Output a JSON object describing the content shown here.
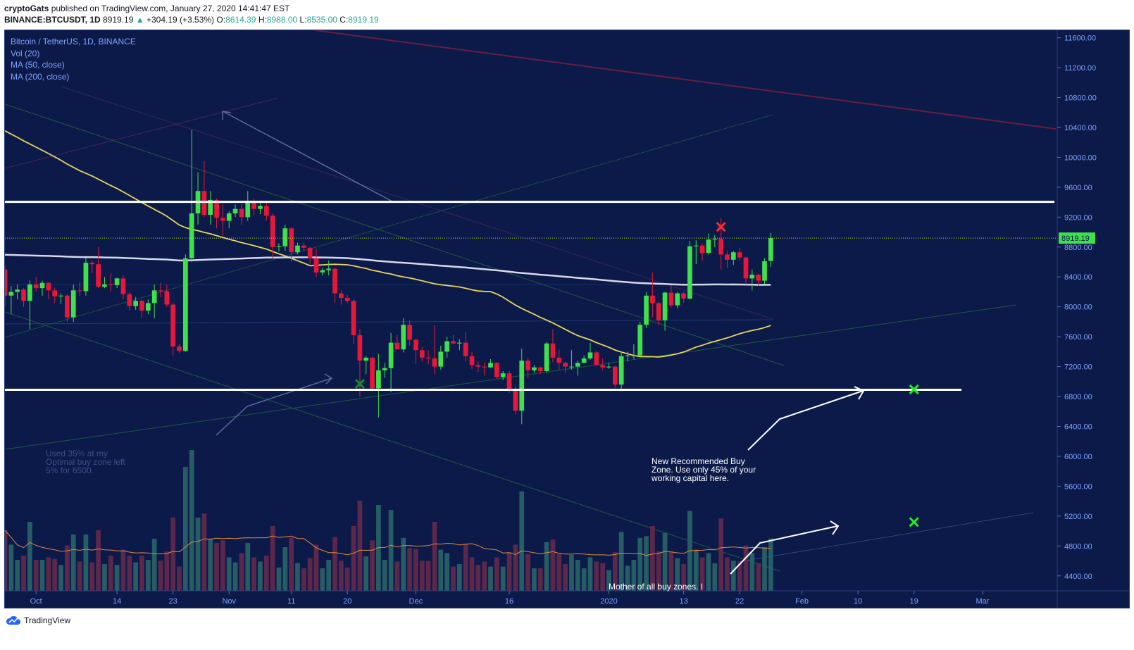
{
  "header": {
    "author": "cryptoGats",
    "published_text": "published on TradingView.com, January 27, 2020 14:41:47 EST",
    "symbol": "BINANCE:BTCUSDT, 1D",
    "last": "8919.19",
    "change_arrow": "▲",
    "change": "+304.19 (+3.53%)",
    "o_label": "O:",
    "o": "8614.39",
    "h_label": "H:",
    "h": "8988.00",
    "l_label": "L:",
    "l": "8535.00",
    "c_label": "C:",
    "c": "8919.19"
  },
  "legend": {
    "title": "Bitcoin / TetherUS, 1D, BINANCE",
    "items": [
      "Vol (20)",
      "MA (50, close)",
      "MA (200, close)"
    ]
  },
  "annotations": {
    "buy_zone_note": [
      "New Recommended Buy",
      "Zone. Use only 45% of your",
      "working capital here."
    ],
    "used_note": [
      "Used 35% at my",
      "Optimal buy zone left",
      "5% for 6500."
    ],
    "mother_note": "Mother of all buy zones. I"
  },
  "footer": {
    "brand": "TradingView"
  },
  "colors": {
    "bg": "#0c1a4a",
    "up": "#3fe04a",
    "down": "#e8173a",
    "ma50": "#e8d55a",
    "ma200": "#d8d8e8",
    "level": "#ffffff",
    "price_tag": "#3fe04a"
  },
  "chart_data": {
    "type": "candlestick",
    "y_axis": {
      "min": 4200,
      "max": 11700,
      "ticks": [
        "11600.00",
        "11200.00",
        "10800.00",
        "10400.00",
        "10000.00",
        "9600.00",
        "9200.00",
        "8800.00",
        "8400.00",
        "8000.00",
        "7600.00",
        "7200.00",
        "6800.00",
        "6400.00",
        "6000.00",
        "5600.00",
        "5200.00",
        "4800.00",
        "4400.00"
      ],
      "tick_values": [
        11600,
        11200,
        10800,
        10400,
        10000,
        9600,
        9200,
        8800,
        8400,
        8000,
        7600,
        7200,
        6800,
        6400,
        6000,
        5600,
        5200,
        4800,
        4400
      ]
    },
    "x_axis": {
      "labels": [
        "Oct",
        "14",
        "23",
        "Nov",
        "11",
        "20",
        "Dec",
        "16",
        "2020",
        "13",
        "22",
        "Feb",
        "10",
        "19",
        "Mar"
      ],
      "label_dates": [
        "2019-10-01",
        "2019-10-14",
        "2019-10-23",
        "2019-11-01",
        "2019-11-11",
        "2019-11-20",
        "2019-12-01",
        "2019-12-16",
        "2020-01-01",
        "2020-01-13",
        "2020-01-22",
        "2020-02-01",
        "2020-02-10",
        "2020-02-19",
        "2020-03-01"
      ],
      "start": "2019-09-26",
      "end": "2020-03-13"
    },
    "current_price": "8919.19",
    "horizontal_levels": [
      9405,
      6890
    ],
    "candles": [
      [
        "2019-09-26",
        8500,
        8550,
        8000,
        8150
      ],
      [
        "2019-09-27",
        8150,
        8280,
        7900,
        8200
      ],
      [
        "2019-09-28",
        8200,
        8300,
        8100,
        8230
      ],
      [
        "2019-09-29",
        8230,
        8250,
        8000,
        8080
      ],
      [
        "2019-09-30",
        8080,
        8350,
        7700,
        8300
      ],
      [
        "2019-10-01",
        8300,
        8400,
        8200,
        8250
      ],
      [
        "2019-10-02",
        8250,
        8350,
        8150,
        8320
      ],
      [
        "2019-10-03",
        8320,
        8330,
        8100,
        8220
      ],
      [
        "2019-10-04",
        8220,
        8260,
        8050,
        8140
      ],
      [
        "2019-10-05",
        8140,
        8180,
        8040,
        8150
      ],
      [
        "2019-10-06",
        8150,
        8170,
        7800,
        7860
      ],
      [
        "2019-10-07",
        7860,
        8300,
        7800,
        8220
      ],
      [
        "2019-10-08",
        8220,
        8330,
        8150,
        8210
      ],
      [
        "2019-10-09",
        8210,
        8650,
        8150,
        8590
      ],
      [
        "2019-10-10",
        8590,
        8620,
        8450,
        8570
      ],
      [
        "2019-10-11",
        8570,
        8800,
        8250,
        8270
      ],
      [
        "2019-10-12",
        8270,
        8400,
        8250,
        8300
      ],
      [
        "2019-10-13",
        8300,
        8450,
        8200,
        8290
      ],
      [
        "2019-10-14",
        8290,
        8390,
        8250,
        8380
      ],
      [
        "2019-10-15",
        8380,
        8420,
        8100,
        8170
      ],
      [
        "2019-10-16",
        8170,
        8200,
        7950,
        8010
      ],
      [
        "2019-10-17",
        8010,
        8130,
        7960,
        8080
      ],
      [
        "2019-10-18",
        8080,
        8100,
        7850,
        7950
      ],
      [
        "2019-10-19",
        7950,
        8100,
        7900,
        8050
      ],
      [
        "2019-10-20",
        8050,
        8300,
        7850,
        8220
      ],
      [
        "2019-10-21",
        8220,
        8320,
        8130,
        8210
      ],
      [
        "2019-10-22",
        8210,
        8300,
        8000,
        8030
      ],
      [
        "2019-10-23",
        8030,
        8050,
        7350,
        7470
      ],
      [
        "2019-10-24",
        7470,
        7500,
        7380,
        7410
      ],
      [
        "2019-10-25",
        7410,
        8700,
        7400,
        8650
      ],
      [
        "2019-10-26",
        8650,
        10370,
        8600,
        9250
      ],
      [
        "2019-10-27",
        9250,
        9800,
        9100,
        9550
      ],
      [
        "2019-10-28",
        9550,
        9950,
        9200,
        9230
      ],
      [
        "2019-10-29",
        9230,
        9550,
        9100,
        9430
      ],
      [
        "2019-10-30",
        9430,
        9450,
        9050,
        9190
      ],
      [
        "2019-10-31",
        9190,
        9380,
        8950,
        9150
      ],
      [
        "2019-11-01",
        9150,
        9280,
        9050,
        9250
      ],
      [
        "2019-11-02",
        9250,
        9370,
        9200,
        9310
      ],
      [
        "2019-11-03",
        9310,
        9380,
        9100,
        9200
      ],
      [
        "2019-11-04",
        9200,
        9550,
        9150,
        9420
      ],
      [
        "2019-11-05",
        9420,
        9450,
        9220,
        9310
      ],
      [
        "2019-11-06",
        9310,
        9420,
        9240,
        9350
      ],
      [
        "2019-11-07",
        9350,
        9400,
        9150,
        9220
      ],
      [
        "2019-11-08",
        9220,
        9250,
        8650,
        8800
      ],
      [
        "2019-11-09",
        8800,
        8850,
        8740,
        8810
      ],
      [
        "2019-11-10",
        8810,
        9100,
        8750,
        9050
      ],
      [
        "2019-11-11",
        9050,
        9060,
        8600,
        8730
      ],
      [
        "2019-11-12",
        8730,
        8860,
        8700,
        8820
      ],
      [
        "2019-11-13",
        8820,
        8850,
        8750,
        8790
      ],
      [
        "2019-11-14",
        8790,
        8800,
        8580,
        8650
      ],
      [
        "2019-11-15",
        8650,
        8780,
        8400,
        8460
      ],
      [
        "2019-11-16",
        8460,
        8520,
        8420,
        8490
      ],
      [
        "2019-11-17",
        8490,
        8620,
        8420,
        8510
      ],
      [
        "2019-11-18",
        8510,
        8520,
        8050,
        8180
      ],
      [
        "2019-11-19",
        8180,
        8220,
        8030,
        8120
      ],
      [
        "2019-11-20",
        8120,
        8160,
        8050,
        8080
      ],
      [
        "2019-11-21",
        8080,
        8100,
        7500,
        7620
      ],
      [
        "2019-11-22",
        7620,
        7700,
        6800,
        7280
      ],
      [
        "2019-11-23",
        7280,
        7340,
        7100,
        7320
      ],
      [
        "2019-11-24",
        7320,
        7330,
        6900,
        6910
      ],
      [
        "2019-11-25",
        6910,
        7370,
        6520,
        7150
      ],
      [
        "2019-11-26",
        7150,
        7250,
        7050,
        7180
      ],
      [
        "2019-11-27",
        7180,
        7650,
        6860,
        7520
      ],
      [
        "2019-11-28",
        7520,
        7620,
        7440,
        7430
      ],
      [
        "2019-11-29",
        7430,
        7850,
        7390,
        7760
      ],
      [
        "2019-11-30",
        7760,
        7820,
        7480,
        7560
      ],
      [
        "2019-12-01",
        7560,
        7570,
        7240,
        7420
      ],
      [
        "2019-12-02",
        7420,
        7460,
        7270,
        7320
      ],
      [
        "2019-12-03",
        7320,
        7420,
        7230,
        7310
      ],
      [
        "2019-12-04",
        7310,
        7750,
        7100,
        7200
      ],
      [
        "2019-12-05",
        7200,
        7480,
        7160,
        7400
      ],
      [
        "2019-12-06",
        7400,
        7600,
        7320,
        7540
      ],
      [
        "2019-12-07",
        7540,
        7620,
        7500,
        7510
      ],
      [
        "2019-12-08",
        7510,
        7570,
        7420,
        7520
      ],
      [
        "2019-12-09",
        7520,
        7660,
        7270,
        7340
      ],
      [
        "2019-12-10",
        7340,
        7400,
        7170,
        7220
      ],
      [
        "2019-12-11",
        7220,
        7270,
        7130,
        7200
      ],
      [
        "2019-12-12",
        7200,
        7260,
        7080,
        7190
      ],
      [
        "2019-12-13",
        7190,
        7300,
        7180,
        7250
      ],
      [
        "2019-12-14",
        7250,
        7260,
        7030,
        7060
      ],
      [
        "2019-12-15",
        7060,
        7140,
        7020,
        7110
      ],
      [
        "2019-12-16",
        7110,
        7140,
        6850,
        6880
      ],
      [
        "2019-12-17",
        6880,
        6940,
        6560,
        6610
      ],
      [
        "2019-12-18",
        6610,
        7440,
        6430,
        7280
      ],
      [
        "2019-12-19",
        7280,
        7320,
        7050,
        7150
      ],
      [
        "2019-12-20",
        7150,
        7220,
        7120,
        7190
      ],
      [
        "2019-12-21",
        7190,
        7200,
        7100,
        7140
      ],
      [
        "2019-12-22",
        7140,
        7530,
        7120,
        7510
      ],
      [
        "2019-12-23",
        7510,
        7700,
        7260,
        7320
      ],
      [
        "2019-12-24",
        7320,
        7430,
        7160,
        7250
      ],
      [
        "2019-12-25",
        7250,
        7270,
        7120,
        7200
      ],
      [
        "2019-12-26",
        7200,
        7420,
        7160,
        7200
      ],
      [
        "2019-12-27",
        7200,
        7280,
        7080,
        7250
      ],
      [
        "2019-12-28",
        7250,
        7350,
        7250,
        7310
      ],
      [
        "2019-12-29",
        7310,
        7520,
        7290,
        7390
      ],
      [
        "2019-12-30",
        7390,
        7410,
        7230,
        7220
      ],
      [
        "2019-12-31",
        7220,
        7310,
        7150,
        7190
      ],
      [
        "2020-01-01",
        7190,
        7250,
        7170,
        7200
      ],
      [
        "2020-01-02",
        7200,
        7210,
        6920,
        6960
      ],
      [
        "2020-01-03",
        6960,
        7400,
        6870,
        7340
      ],
      [
        "2020-01-04",
        7340,
        7400,
        7270,
        7350
      ],
      [
        "2020-01-05",
        7350,
        7500,
        7300,
        7350
      ],
      [
        "2020-01-06",
        7350,
        7800,
        7340,
        7760
      ],
      [
        "2020-01-07",
        7760,
        8200,
        7720,
        8150
      ],
      [
        "2020-01-08",
        8150,
        8460,
        7860,
        8050
      ],
      [
        "2020-01-09",
        8050,
        8060,
        7760,
        7820
      ],
      [
        "2020-01-10",
        7820,
        8200,
        7680,
        8190
      ],
      [
        "2020-01-11",
        8190,
        8290,
        7990,
        8020
      ],
      [
        "2020-01-12",
        8020,
        8200,
        7980,
        8180
      ],
      [
        "2020-01-13",
        8180,
        8200,
        8050,
        8110
      ],
      [
        "2020-01-14",
        8110,
        8880,
        8100,
        8810
      ],
      [
        "2020-01-15",
        8810,
        8890,
        8570,
        8820
      ],
      [
        "2020-01-16",
        8820,
        8850,
        8620,
        8720
      ],
      [
        "2020-01-17",
        8720,
        8980,
        8700,
        8900
      ],
      [
        "2020-01-18",
        8900,
        8960,
        8800,
        8910
      ],
      [
        "2020-01-19",
        8910,
        9190,
        8500,
        8700
      ],
      [
        "2020-01-20",
        8700,
        8750,
        8520,
        8630
      ],
      [
        "2020-01-21",
        8630,
        8750,
        8560,
        8730
      ],
      [
        "2020-01-22",
        8730,
        8790,
        8620,
        8660
      ],
      [
        "2020-01-23",
        8660,
        8670,
        8300,
        8380
      ],
      [
        "2020-01-24",
        8380,
        8500,
        8220,
        8430
      ],
      [
        "2020-01-25",
        8430,
        8440,
        8280,
        8350
      ],
      [
        "2020-01-26",
        8350,
        8650,
        8300,
        8610
      ],
      [
        "2020-01-27",
        8614.39,
        8988,
        8535,
        8919.19
      ]
    ],
    "markers": [
      {
        "date": "2019-11-22",
        "price": 6970,
        "symbol": "x",
        "color": "#1c8a2c"
      },
      {
        "date": "2020-01-19",
        "price": 9070,
        "symbol": "x",
        "color": "#ff2a2a"
      },
      {
        "date": "2020-02-19",
        "price": 6895,
        "symbol": "x",
        "color": "#22ee22"
      },
      {
        "date": "2020-02-19",
        "price": 5120,
        "symbol": "x",
        "color": "#22ee22"
      }
    ]
  }
}
